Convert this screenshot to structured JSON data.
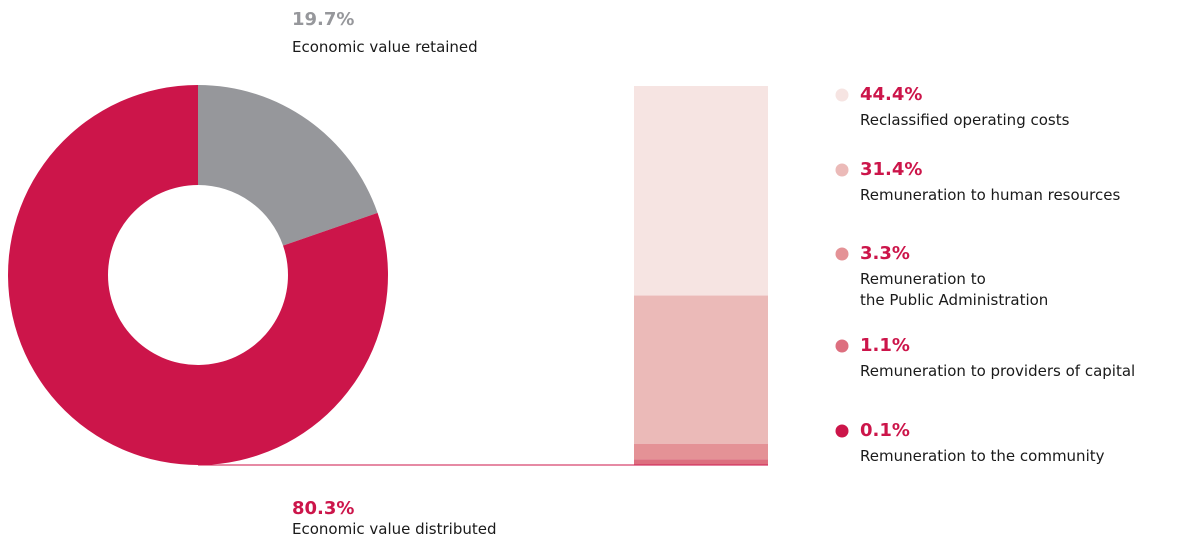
{
  "colors": {
    "primary": "#CC154A",
    "retained": "#96979B",
    "shade_1": "#F6E4E2",
    "shade_2": "#EBBAB8",
    "shade_3": "#E49296",
    "shade_4": "#DD6F7F",
    "shade_5": "#CC154A"
  },
  "chart_data": [
    {
      "type": "pie",
      "variant": "donut",
      "slices": [
        {
          "value": 19.7,
          "percent_label": "19.7%",
          "label": "Economic value retained",
          "color": "#96979B"
        },
        {
          "value": 80.3,
          "percent_label": "80.3%",
          "label": "Economic value distributed",
          "color": "#CC154A"
        }
      ]
    },
    {
      "type": "bar",
      "variant": "stacked-100",
      "series": [
        {
          "value": 44.4,
          "percent_label": "44.4%",
          "label": "Reclassified operating costs",
          "label_lines": [
            "Reclassified operating costs"
          ],
          "color": "#F6E4E2"
        },
        {
          "value": 31.4,
          "percent_label": "31.4%",
          "label": "Remuneration to human resources",
          "label_lines": [
            "Remuneration to human resources"
          ],
          "color": "#EBBAB8"
        },
        {
          "value": 3.3,
          "percent_label": "3.3%",
          "label": "Remuneration to the Public Administration",
          "label_lines": [
            "Remuneration to",
            "the Public Administration"
          ],
          "color": "#E49296"
        },
        {
          "value": 1.1,
          "percent_label": "1.1%",
          "label": "Remuneration to providers of capital",
          "label_lines": [
            "Remuneration to providers of capital"
          ],
          "color": "#DD6F7F"
        },
        {
          "value": 0.1,
          "percent_label": "0.1%",
          "label": "Remuneration to the community",
          "label_lines": [
            "Remuneration to the community"
          ],
          "color": "#CC154A"
        }
      ],
      "legend_position": "right"
    }
  ]
}
